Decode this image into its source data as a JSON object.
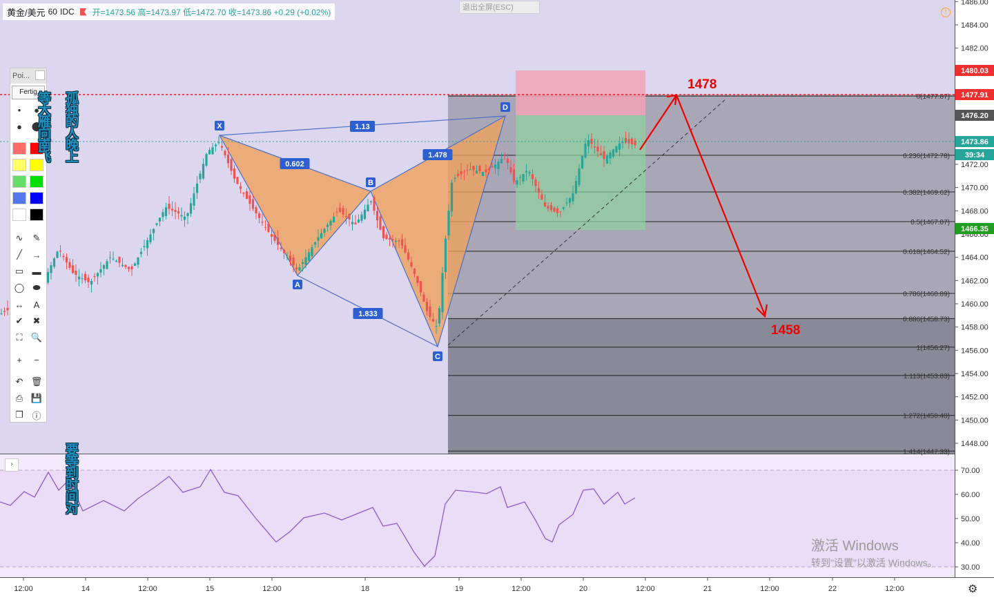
{
  "header": {
    "symbol": "黄金/美元",
    "interval": "60",
    "exchange": "IDC",
    "ohlc": "开=1473.56 高=1473.97 低=1472.70 收=1473.86 +0.29 (+0.02%)"
  },
  "esc_button": "退出全屏(ESC)",
  "toolbar": {
    "title": "Poi...",
    "done_label": "Fertig",
    "color_swatches": [
      "#ff6b6b",
      "#ff0000",
      "#ffff66",
      "#ffff00",
      "#66dd66",
      "#00dd00",
      "#5577ee",
      "#0000ff",
      "#ffffff",
      "#000000"
    ],
    "tools": [
      "dot-small",
      "dot-medium",
      "circle-filled",
      "circle-large",
      "curve",
      "pencil",
      "line",
      "arrow",
      "rectangle",
      "rectangle-filled",
      "ellipse",
      "ellipse-filled",
      "double-arrow",
      "text",
      "check",
      "cross",
      "crop",
      "zoom",
      "plus",
      "minus",
      "undo",
      "trash",
      "print",
      "save",
      "copy",
      "info"
    ]
  },
  "overlay_text": {
    "vertical_1": "等大雁向南飞",
    "vertical_2": "孤独的人晚上",
    "vertical_3": "要等到时间对"
  },
  "annotations": {
    "target_up": "1478",
    "target_down": "1458"
  },
  "price_axis": {
    "ticks": [
      "1486.00",
      "1484.00",
      "1482.00",
      "1480.00",
      "1478.00",
      "1476.00",
      "1474.00",
      "1472.00",
      "1470.00",
      "1468.00",
      "1466.00",
      "1464.00",
      "1462.00",
      "1460.00",
      "1458.00",
      "1456.00",
      "1454.00",
      "1452.00",
      "1450.00",
      "1448.00"
    ],
    "badges": [
      {
        "label": "1480.03",
        "color": "#ef2f2f"
      },
      {
        "label": "1477.91",
        "color": "#ef2f2f"
      },
      {
        "label": "1476.20",
        "color": "#555555"
      },
      {
        "label": "1473.86",
        "color": "#26a69a"
      },
      {
        "label": "39:34",
        "color": "#26a69a"
      },
      {
        "label": "1466.35",
        "color": "#1f9e1f"
      }
    ]
  },
  "rsi_axis": {
    "ticks": [
      "70.00",
      "60.00",
      "50.00",
      "40.00",
      "30.00"
    ]
  },
  "time_axis": {
    "labels": [
      "12:00",
      "14",
      "12:00",
      "15",
      "12:00",
      "18",
      "19",
      "12:00",
      "20",
      "12:00",
      "21",
      "12:00",
      "22",
      "12:00"
    ]
  },
  "fib_levels": [
    {
      "label": "0(1477.87)",
      "price": 1477.87
    },
    {
      "label": "0.236(1472.78)",
      "price": 1472.78
    },
    {
      "label": "0.382(1469.62)",
      "price": 1469.62
    },
    {
      "label": "0.5(1467.07)",
      "price": 1467.07
    },
    {
      "label": "0.618(1464.52)",
      "price": 1464.52
    },
    {
      "label": "0.786(1460.89)",
      "price": 1460.89
    },
    {
      "label": "0.886(1458.73)",
      "price": 1458.73
    },
    {
      "label": "1(1456.27)",
      "price": 1456.27
    },
    {
      "label": "1.113(1453.83)",
      "price": 1453.83
    },
    {
      "label": "1.272(1450.40)",
      "price": 1450.4
    },
    {
      "label": "1.414(1447.33)",
      "price": 1447.33
    }
  ],
  "pattern": {
    "points": [
      "X",
      "A",
      "B",
      "C",
      "D"
    ],
    "ratios": [
      "1.13",
      "0.602",
      "1.478",
      "1.833"
    ]
  },
  "watermark": {
    "line1": "激活 Windows",
    "line2": "转到\"设置\"以激活 Windows。"
  },
  "colors": {
    "up": "#26a69a",
    "down": "#ef5350",
    "pattern_fill": "#f0a05a",
    "rsi_line": "#8e5cc8",
    "arrow": "#ee0000"
  }
}
